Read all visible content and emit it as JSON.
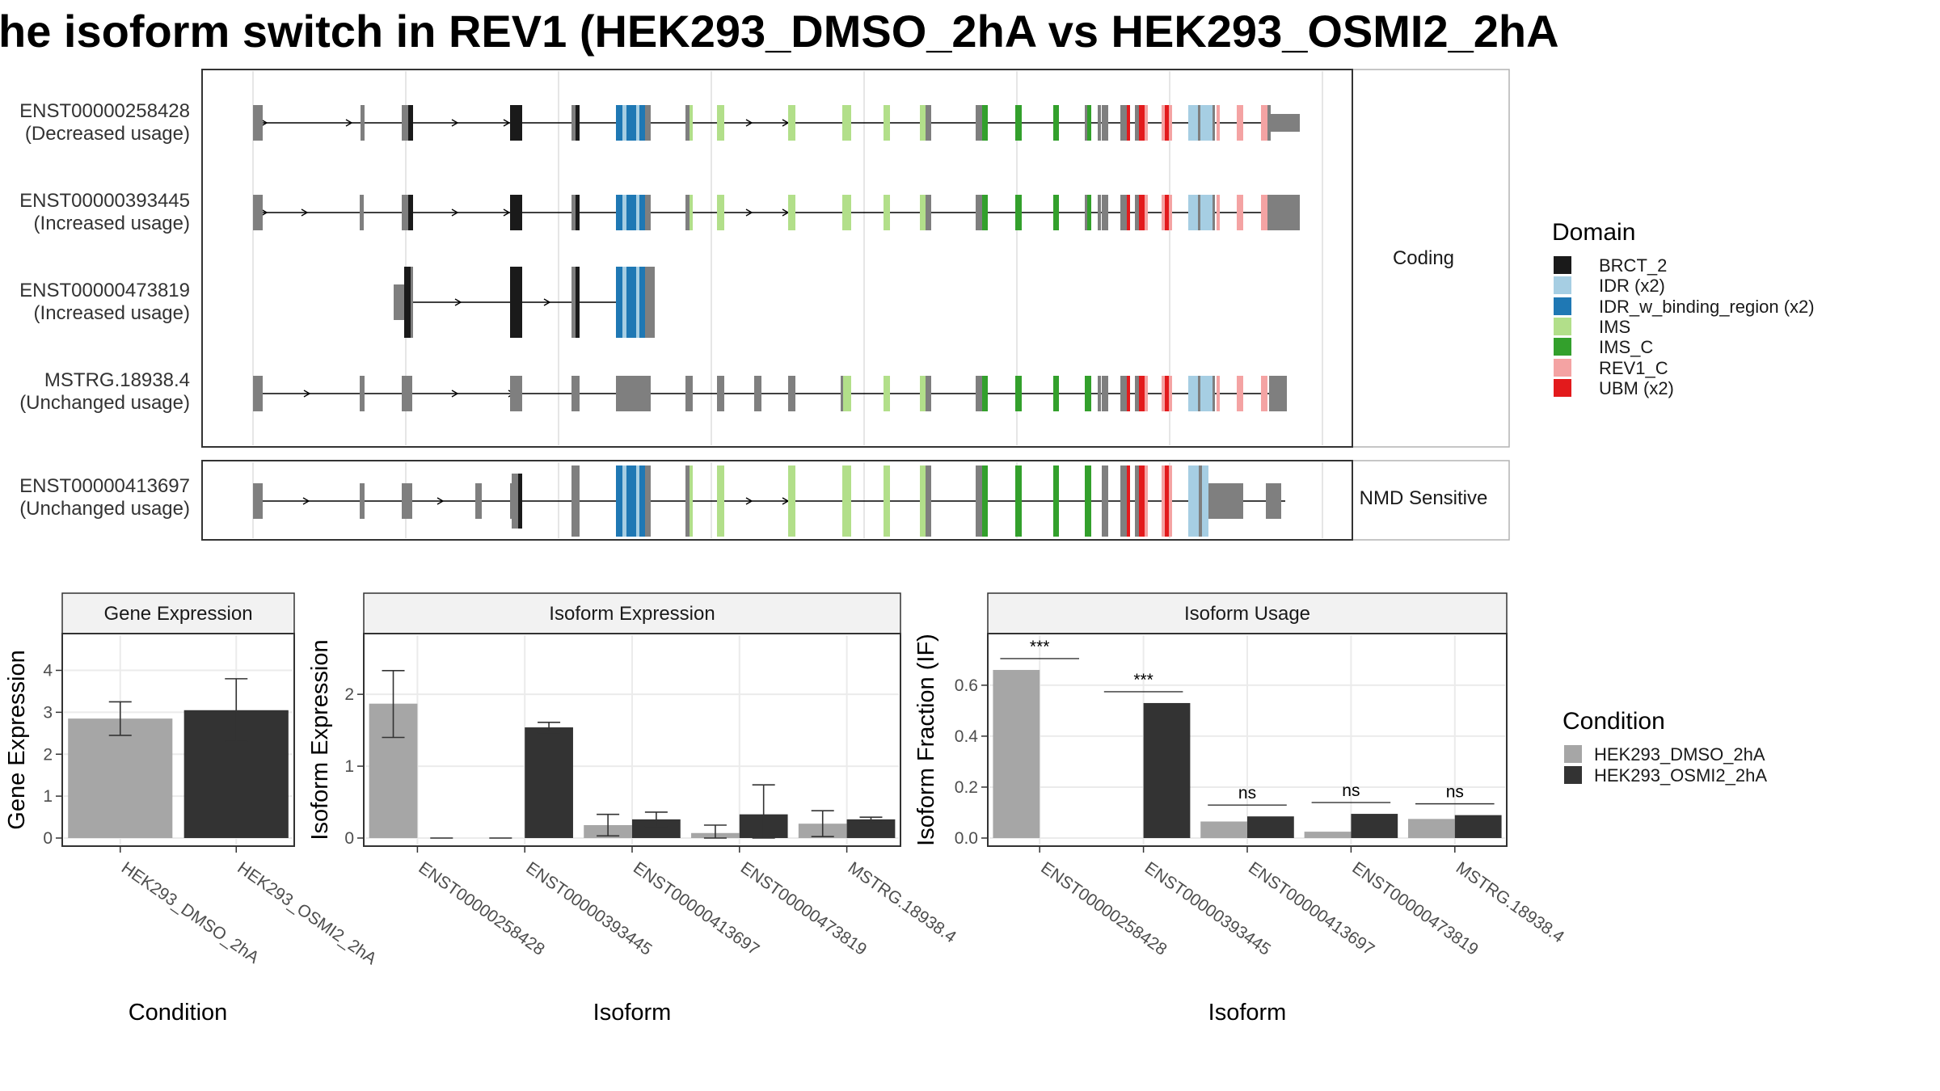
{
  "title": "he isoform switch in REV1 (HEK293_DMSO_2hA vs HEK293_OSMI2_2hA",
  "colors": {
    "BRCT_2": "#1a1a1a",
    "IDR (x2)": "#a6cee3",
    "IDR_w_binding_region (x2)": "#1f78b4",
    "IMS": "#b2df8a",
    "IMS_C": "#33a02c",
    "REV1_C": "#f4a3a3",
    "UBM (x2)": "#e31a1c",
    "exon": "#7f7f7f",
    "dmso": "#a6a6a6",
    "osmi": "#333333"
  },
  "structure": {
    "groups": [
      {
        "label": "Coding",
        "transcripts": [
          {
            "id": "ENST00000258428",
            "usage": "(Decreased usage)"
          },
          {
            "id": "ENST00000393445",
            "usage": "(Increased usage)"
          },
          {
            "id": "ENST00000473819",
            "usage": "(Increased usage)"
          },
          {
            "id": "MSTRG.18938.4",
            "usage": "(Unchanged usage)"
          }
        ]
      },
      {
        "label": "NMD Sensitive",
        "transcripts": [
          {
            "id": "ENST00000413697",
            "usage": "(Unchanged usage)"
          }
        ]
      }
    ]
  },
  "legend_domain": {
    "title": "Domain",
    "items": [
      "BRCT_2",
      "IDR (x2)",
      "IDR_w_binding_region (x2)",
      "IMS",
      "IMS_C",
      "REV1_C",
      "UBM (x2)"
    ]
  },
  "legend_condition": {
    "title": "Condition",
    "items": [
      "HEK293_DMSO_2hA",
      "HEK293_OSMI2_2hA"
    ]
  },
  "chart_data": [
    {
      "type": "bar",
      "title": "Gene Expression",
      "xlabel": "Condition",
      "ylabel": "Gene Expression",
      "ylim": [
        0,
        4.8
      ],
      "yticks": [
        0,
        1,
        2,
        3,
        4
      ],
      "categories": [
        "HEK293_DMSO_2hA",
        "HEK293_OSMI2_2hA"
      ],
      "values": [
        2.85,
        3.05
      ],
      "error": [
        [
          2.45,
          3.25
        ],
        [
          2.3,
          3.8
        ]
      ]
    },
    {
      "type": "bar",
      "title": "Isoform Expression",
      "xlabel": "Isoform",
      "ylabel": "Isoform Expression",
      "ylim": [
        0,
        2.8
      ],
      "yticks": [
        0,
        1,
        2
      ],
      "categories": [
        "ENST00000258428",
        "ENST00000393445",
        "ENST00000413697",
        "ENST00000473819",
        "MSTRG.18938.4"
      ],
      "series": [
        {
          "name": "HEK293_DMSO_2hA",
          "values": [
            1.87,
            0.0,
            0.18,
            0.07,
            0.2
          ],
          "error": [
            [
              1.4,
              2.33
            ],
            [
              0.0,
              0.0
            ],
            [
              0.03,
              0.33
            ],
            [
              0.0,
              0.18
            ],
            [
              0.02,
              0.38
            ]
          ]
        },
        {
          "name": "HEK293_OSMI2_2hA",
          "values": [
            0.0,
            1.54,
            0.26,
            0.33,
            0.26
          ],
          "error": [
            [
              0.0,
              0.0
            ],
            [
              1.47,
              1.61
            ],
            [
              0.16,
              0.36
            ],
            [
              0.0,
              0.74
            ],
            [
              0.23,
              0.29
            ]
          ]
        }
      ]
    },
    {
      "type": "bar",
      "title": "Isoform Usage",
      "xlabel": "Isoform",
      "ylabel": "Isoform Fraction (IF)",
      "ylim": [
        0,
        0.79
      ],
      "yticks": [
        "0.0",
        "0.2",
        "0.4",
        "0.6"
      ],
      "categories": [
        "ENST00000258428",
        "ENST00000393445",
        "ENST00000413697",
        "ENST00000473819",
        "MSTRG.18938.4"
      ],
      "series": [
        {
          "name": "HEK293_DMSO_2hA",
          "values": [
            0.66,
            0.0,
            0.065,
            0.025,
            0.075
          ]
        },
        {
          "name": "HEK293_OSMI2_2hA",
          "values": [
            0.0,
            0.53,
            0.085,
            0.095,
            0.09
          ]
        }
      ],
      "significance": [
        "***",
        "***",
        "ns",
        "ns",
        "ns"
      ]
    }
  ]
}
